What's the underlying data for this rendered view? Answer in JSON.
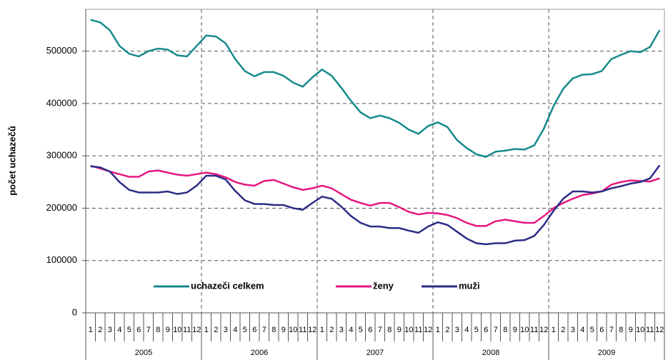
{
  "chart_data": {
    "type": "line",
    "y_label": "počet uchazečů",
    "categories": [
      "1",
      "2",
      "3",
      "4",
      "5",
      "6",
      "7",
      "8",
      "9",
      "10",
      "11",
      "12",
      "1",
      "2",
      "3",
      "4",
      "5",
      "6",
      "7",
      "8",
      "9",
      "10",
      "11",
      "12",
      "1",
      "2",
      "3",
      "4",
      "5",
      "6",
      "7",
      "8",
      "9",
      "10",
      "11",
      "12",
      "1",
      "2",
      "3",
      "4",
      "5",
      "6",
      "7",
      "8",
      "9",
      "10",
      "11",
      "12",
      "1",
      "2",
      "3",
      "4",
      "5",
      "6",
      "7",
      "8",
      "9",
      "10",
      "11",
      "12"
    ],
    "year_groups": [
      "2005",
      "2006",
      "2007",
      "2008",
      "2009"
    ],
    "series": [
      {
        "name": "uchazeči celkem",
        "color": "#178a8c",
        "values": [
          560000,
          555000,
          540000,
          510000,
          495000,
          490000,
          500000,
          505000,
          503000,
          492000,
          490000,
          510000,
          530000,
          528000,
          515000,
          485000,
          462000,
          452000,
          460000,
          460000,
          453000,
          440000,
          432000,
          450000,
          465000,
          453000,
          430000,
          405000,
          383000,
          372000,
          377000,
          372000,
          363000,
          350000,
          342000,
          357000,
          364000,
          355000,
          330000,
          315000,
          303000,
          298000,
          308000,
          310000,
          313000,
          312000,
          320000,
          352000,
          395000,
          428000,
          448000,
          455000,
          456000,
          462000,
          485000,
          493000,
          500000,
          498000,
          508000,
          540000
        ]
      },
      {
        "name": "ženy",
        "color": "#e5177f",
        "values": [
          281000,
          276000,
          270000,
          265000,
          260000,
          260000,
          270000,
          272000,
          268000,
          264000,
          262000,
          265000,
          268000,
          265000,
          259000,
          250000,
          245000,
          243000,
          252000,
          254000,
          247000,
          240000,
          235000,
          238000,
          243000,
          238000,
          227000,
          216000,
          210000,
          205000,
          210000,
          210000,
          202000,
          193000,
          188000,
          191000,
          190000,
          187000,
          181000,
          172000,
          166000,
          166000,
          175000,
          178000,
          175000,
          172000,
          172000,
          185000,
          200000,
          210000,
          218000,
          225000,
          228000,
          232000,
          245000,
          250000,
          253000,
          252000,
          251000,
          257000
        ]
      },
      {
        "name": "muži",
        "color": "#2b2c85",
        "values": [
          280000,
          278000,
          270000,
          250000,
          235000,
          230000,
          230000,
          230000,
          232000,
          227000,
          230000,
          243000,
          262000,
          262000,
          255000,
          233000,
          215000,
          208000,
          208000,
          206000,
          206000,
          200000,
          197000,
          210000,
          222000,
          218000,
          203000,
          185000,
          172000,
          165000,
          165000,
          162000,
          162000,
          157000,
          153000,
          165000,
          173000,
          168000,
          155000,
          142000,
          133000,
          131000,
          133000,
          133000,
          138000,
          139000,
          147000,
          168000,
          195000,
          218000,
          232000,
          232000,
          230000,
          232000,
          238000,
          242000,
          247000,
          250000,
          257000,
          282000
        ]
      }
    ],
    "ylim": [
      0,
      580000
    ],
    "yticks": [
      0,
      100000,
      200000,
      300000,
      400000,
      500000
    ],
    "grid": true
  }
}
